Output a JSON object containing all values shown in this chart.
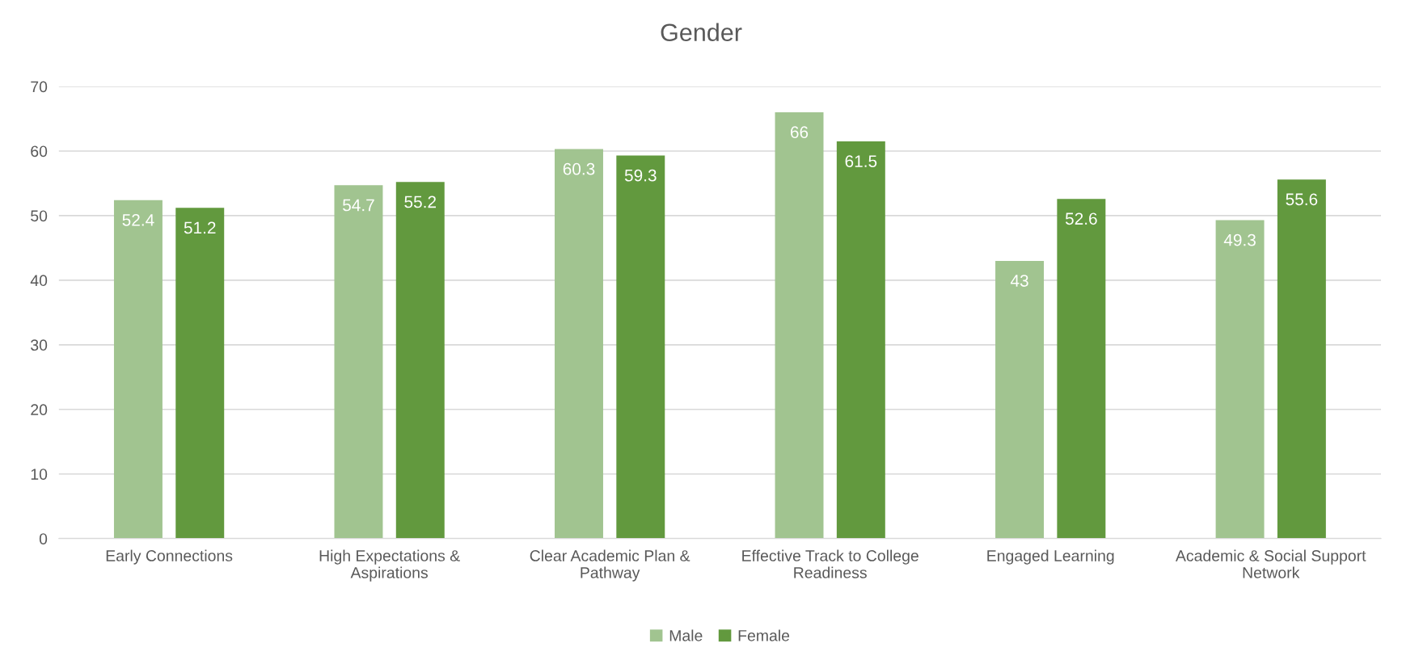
{
  "chart_data": {
    "type": "bar",
    "title": "Gender",
    "categories": [
      "Early Connections",
      "High Expectations & Aspirations",
      "Clear Academic Plan & Pathway",
      "Effective Track to College Readiness",
      "Engaged Learning",
      "Academic & Social Support Network"
    ],
    "series": [
      {
        "name": "Male",
        "color": "#a1c490",
        "values": [
          52.4,
          54.7,
          60.3,
          66,
          43,
          49.3
        ]
      },
      {
        "name": "Female",
        "color": "#62993e",
        "values": [
          51.2,
          55.2,
          59.3,
          61.5,
          52.6,
          55.6
        ]
      }
    ],
    "ylim": [
      0,
      70
    ],
    "yticks": [
      0,
      10,
      20,
      30,
      40,
      50,
      60,
      70
    ],
    "grid": "y",
    "legend": "bottom",
    "data_labels": true
  }
}
